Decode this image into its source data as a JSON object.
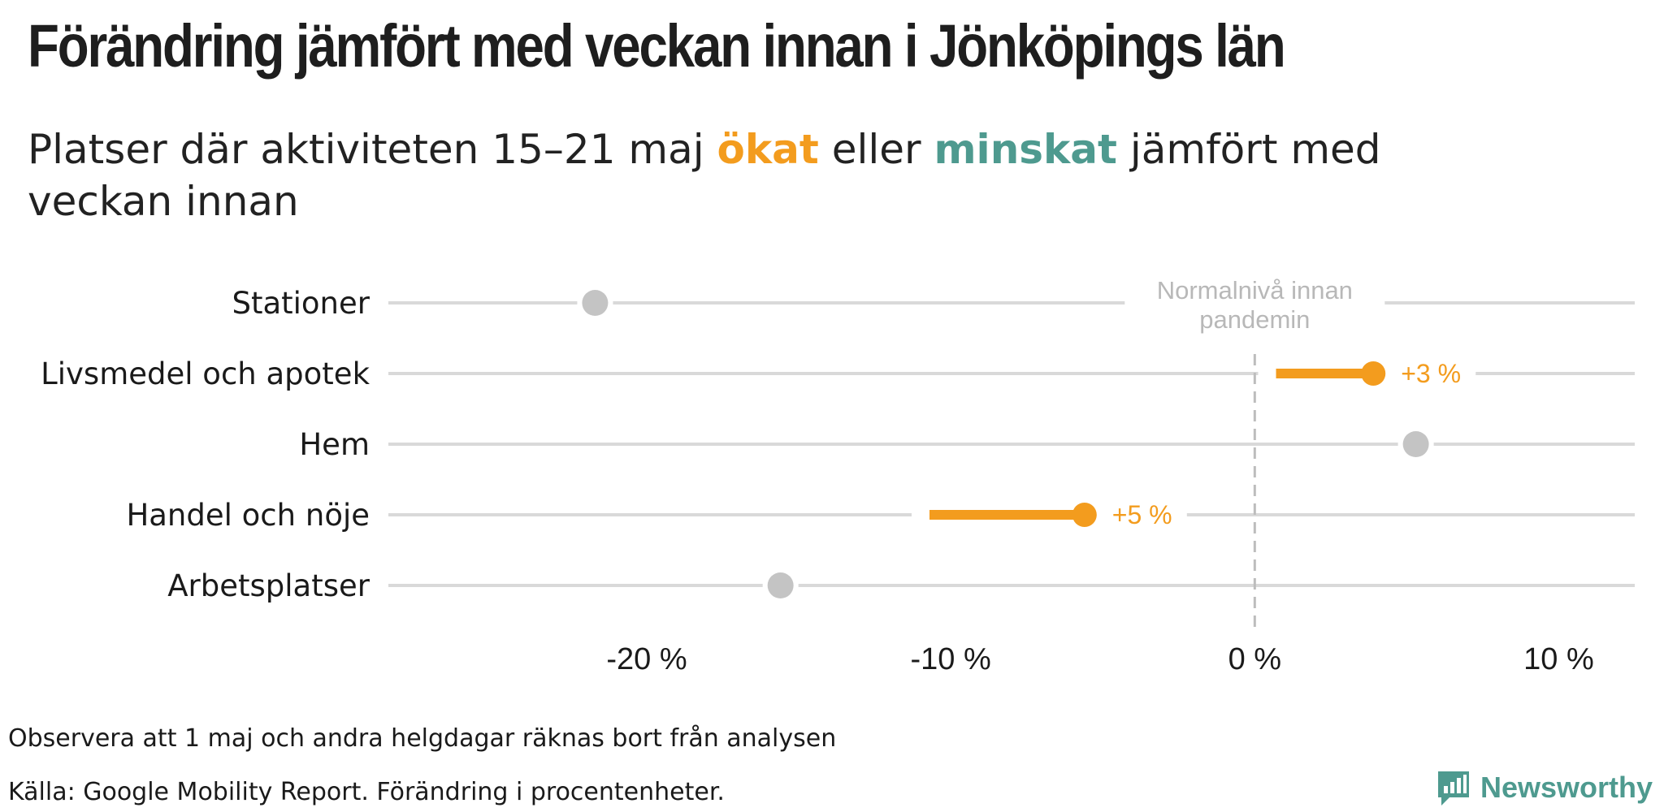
{
  "title": "Förändring jämfört med veckan innan i Jönköpings län",
  "subtitle": {
    "before": "Platser där aktiviteten 15–21 maj ",
    "up_word": "ökat",
    "middle": " eller ",
    "down_word": "minskat",
    "after": " jämfört med veckan innan"
  },
  "colors": {
    "increase": "#f39c1e",
    "decrease": "#4e9a8f",
    "unchanged": "#c4c4c4",
    "gridline": "#d9d9d9",
    "reference": "#bdbdbd"
  },
  "chart_data": {
    "type": "dot",
    "xlim": [
      -28.5,
      12.5
    ],
    "xticks": [
      -20,
      -10,
      0,
      10
    ],
    "xtick_labels": [
      "-20 %",
      "-10 %",
      "0 %",
      "10 %"
    ],
    "reference_line": {
      "x": 0,
      "label_line1": "Normalnivå innan",
      "label_line2": "pandemin"
    },
    "rows": [
      {
        "category": "Stationer",
        "previous": -21.7,
        "current": -21.7,
        "change_label": "",
        "direction": "none"
      },
      {
        "category": "Livsmedel och apotek",
        "previous": 0.7,
        "current": 3.9,
        "change_label": "+3 %",
        "direction": "up"
      },
      {
        "category": "Hem",
        "previous": 5.3,
        "current": 5.3,
        "change_label": "",
        "direction": "none"
      },
      {
        "category": "Handel och nöje",
        "previous": -10.7,
        "current": -5.6,
        "change_label": "+5 %",
        "direction": "up"
      },
      {
        "category": "Arbetsplatser",
        "previous": -15.6,
        "current": -15.6,
        "change_label": "",
        "direction": "none"
      }
    ]
  },
  "footer": {
    "note": "Observera att 1 maj och andra helgdagar räknas bort från analysen",
    "source": "Källa: Google Mobility Report. Förändring i procentenheter."
  },
  "brand": {
    "name": "Newsworthy",
    "icon": "bar-chart-speech-bubble-icon"
  }
}
